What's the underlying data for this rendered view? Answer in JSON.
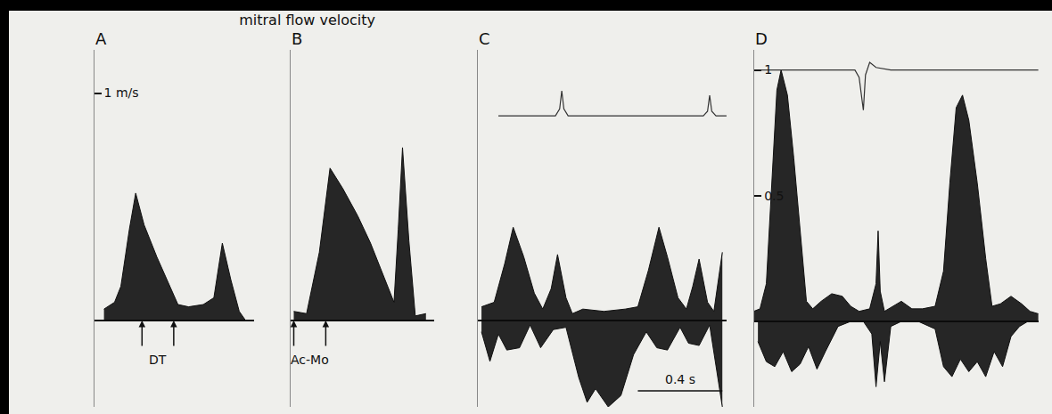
{
  "chart_data": {
    "type": "area",
    "title": "mitral flow velocity",
    "grid": false,
    "panels": [
      {
        "label": "A",
        "xlim": [
          0,
          0.76
        ],
        "ylim": [
          -0.38,
          1.19
        ],
        "yticks": [
          {
            "value": 1,
            "label": "1 m/s"
          }
        ],
        "tick_labels": "y",
        "series": [
          {
            "type": "area",
            "x": [
              0.05,
              0.1,
              0.13,
              0.17,
              0.2,
              0.24,
              0.3,
              0.36,
              0.4,
              0.45,
              0.52,
              0.57,
              0.61,
              0.65,
              0.69,
              0.72
            ],
            "values": [
              0.05,
              0.08,
              0.15,
              0.4,
              0.56,
              0.42,
              0.28,
              0.15,
              0.07,
              0.06,
              0.07,
              0.1,
              0.34,
              0.18,
              0.04,
              0.0
            ]
          }
        ],
        "annotations": [
          {
            "text": "DT",
            "arrows": [
              0.23,
              0.38
            ]
          }
        ]
      },
      {
        "label": "B",
        "xlim": [
          0,
          0.68
        ],
        "ylim": [
          -0.38,
          1.19
        ],
        "yticks": [],
        "tick_labels": false,
        "series": [
          {
            "type": "area",
            "x": [
              0.02,
              0.08,
              0.14,
              0.19,
              0.25,
              0.32,
              0.38,
              0.44,
              0.49,
              0.51,
              0.53,
              0.56,
              0.59,
              0.64
            ],
            "values": [
              0.04,
              0.03,
              0.3,
              0.67,
              0.58,
              0.46,
              0.34,
              0.2,
              0.08,
              0.4,
              0.76,
              0.35,
              0.02,
              0.03
            ]
          }
        ],
        "annotations": [
          {
            "text": "Ac-Mo",
            "arrows": [
              0.02,
              0.17
            ]
          }
        ]
      },
      {
        "label": "C",
        "xlim": [
          0,
          1.18
        ],
        "ylim": [
          -0.38,
          1.19
        ],
        "yticks": [],
        "tick_labels": false,
        "series": [
          {
            "type": "area",
            "x": [
              0.02,
              0.08,
              0.13,
              0.17,
              0.22,
              0.27,
              0.31,
              0.35,
              0.38,
              0.42,
              0.45,
              0.5,
              0.6,
              0.7,
              0.76,
              0.81,
              0.86,
              0.9,
              0.95,
              0.99,
              1.02,
              1.05,
              1.09,
              1.12,
              1.16
            ],
            "values": [
              0.06,
              0.08,
              0.25,
              0.41,
              0.28,
              0.12,
              0.05,
              0.14,
              0.29,
              0.1,
              0.03,
              0.05,
              0.04,
              0.05,
              0.06,
              0.22,
              0.41,
              0.28,
              0.1,
              0.05,
              0.15,
              0.27,
              0.08,
              0.04,
              0.3
            ]
          },
          {
            "type": "area",
            "x": [
              0.02,
              0.06,
              0.1,
              0.14,
              0.2,
              0.25,
              0.3,
              0.36,
              0.42,
              0.48,
              0.52,
              0.56,
              0.62,
              0.68,
              0.74,
              0.8,
              0.85,
              0.9,
              0.96,
              1.0,
              1.05,
              1.1,
              1.16
            ],
            "values": [
              -0.05,
              -0.18,
              -0.06,
              -0.13,
              -0.12,
              -0.02,
              -0.12,
              -0.04,
              -0.03,
              -0.25,
              -0.36,
              -0.3,
              -0.38,
              -0.33,
              -0.15,
              -0.05,
              -0.12,
              -0.13,
              -0.03,
              -0.1,
              -0.11,
              -0.02,
              -0.38
            ]
          },
          {
            "type": "line",
            "x": [
              0.1,
              0.37,
              0.39,
              0.4,
              0.41,
              0.43,
              1.07,
              1.09,
              1.1,
              1.11,
              1.13,
              1.18
            ],
            "values": [
              0.9,
              0.9,
              0.93,
              1.01,
              0.93,
              0.9,
              0.9,
              0.92,
              0.99,
              0.92,
              0.9,
              0.9
            ]
          }
        ],
        "scale_bar": {
          "text": "0.4 s",
          "x": [
            0.76,
            1.16
          ],
          "y": -0.31
        }
      },
      {
        "label": "D",
        "xlim": [
          0,
          1.35
        ],
        "ylim": [
          -0.34,
          1.08
        ],
        "yticks": [
          0.5,
          1
        ],
        "tick_labels": "y",
        "series": [
          {
            "type": "area",
            "x": [
              0.0,
              0.03,
              0.06,
              0.09,
              0.11,
              0.13,
              0.16,
              0.19,
              0.22,
              0.25,
              0.28,
              0.32,
              0.37,
              0.42,
              0.46,
              0.5,
              0.55,
              0.58,
              0.59,
              0.6,
              0.62,
              0.66,
              0.7,
              0.75,
              0.8,
              0.86,
              0.9,
              0.93,
              0.96,
              0.99,
              1.02,
              1.06,
              1.1,
              1.13,
              1.17,
              1.22,
              1.27,
              1.31,
              1.35
            ],
            "values": [
              0.04,
              0.05,
              0.15,
              0.6,
              0.92,
              1.0,
              0.9,
              0.65,
              0.35,
              0.08,
              0.05,
              0.08,
              0.11,
              0.1,
              0.06,
              0.04,
              0.05,
              0.15,
              0.36,
              0.12,
              0.04,
              0.06,
              0.08,
              0.05,
              0.05,
              0.06,
              0.2,
              0.55,
              0.85,
              0.9,
              0.8,
              0.55,
              0.25,
              0.06,
              0.07,
              0.1,
              0.07,
              0.04,
              0.03
            ]
          },
          {
            "type": "area",
            "x": [
              0.02,
              0.06,
              0.1,
              0.14,
              0.18,
              0.22,
              0.26,
              0.3,
              0.34,
              0.4,
              0.46,
              0.52,
              0.56,
              0.58,
              0.6,
              0.62,
              0.65,
              0.7,
              0.78,
              0.86,
              0.9,
              0.94,
              0.98,
              1.02,
              1.06,
              1.1,
              1.14,
              1.18,
              1.22,
              1.26,
              1.3,
              1.35
            ],
            "values": [
              -0.08,
              -0.16,
              -0.18,
              -0.12,
              -0.2,
              -0.17,
              -0.1,
              -0.19,
              -0.12,
              -0.02,
              0,
              0,
              -0.05,
              -0.26,
              -0.08,
              -0.24,
              -0.02,
              0,
              0,
              -0.03,
              -0.18,
              -0.22,
              -0.15,
              -0.2,
              -0.16,
              -0.22,
              -0.12,
              -0.18,
              -0.06,
              -0.02,
              0,
              0
            ]
          },
          {
            "type": "line",
            "x": [
              0.0,
              0.48,
              0.5,
              0.52,
              0.53,
              0.55,
              0.58,
              0.65,
              1.35
            ],
            "values": [
              1.0,
              1.0,
              0.97,
              0.84,
              0.98,
              1.03,
              1.01,
              1.0,
              1.0
            ]
          }
        ]
      }
    ]
  }
}
